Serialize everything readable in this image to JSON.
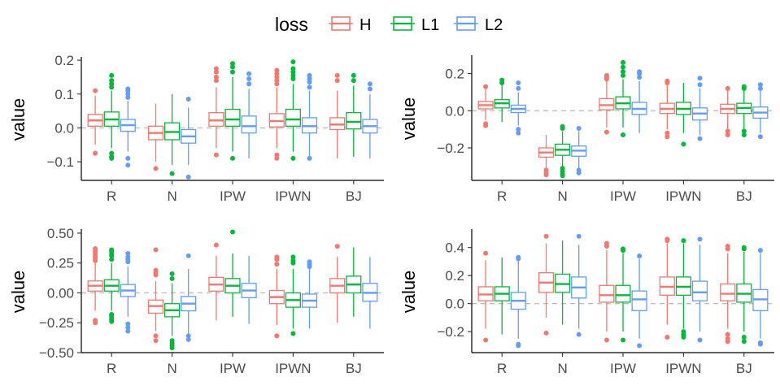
{
  "legend": {
    "title": "loss",
    "items": [
      {
        "label": "H",
        "color": "#F8766D"
      },
      {
        "label": "L1",
        "color": "#00BA38"
      },
      {
        "label": "L2",
        "color": "#619CFF"
      }
    ]
  },
  "chart_data": [
    {
      "type": "box",
      "ylabel": "value",
      "categories": [
        "R",
        "N",
        "IPW",
        "IPWN",
        "BJ"
      ],
      "ylim": [
        -0.155,
        0.205
      ],
      "yticks": [
        -0.1,
        0.0,
        0.1,
        0.2
      ],
      "ytick_labels": [
        "−0.1",
        "0.0",
        "0.1",
        "0.2"
      ],
      "reference_line": 0,
      "series": [
        {
          "name": "H",
          "boxes": [
            {
              "q1": 0.005,
              "median": 0.022,
              "q3": 0.04,
              "wlo": -0.05,
              "whi": 0.095,
              "outliers": [
                0.11,
                -0.075
              ]
            },
            {
              "q1": -0.035,
              "median": -0.015,
              "q3": 0.005,
              "wlo": -0.1,
              "whi": 0.072,
              "outliers": [
                -0.12
              ]
            },
            {
              "q1": 0.005,
              "median": 0.022,
              "q3": 0.045,
              "wlo": -0.06,
              "whi": 0.12,
              "outliers": [
                0.14,
                0.15,
                0.165,
                0.175,
                -0.08
              ]
            },
            {
              "q1": 0.003,
              "median": 0.02,
              "q3": 0.042,
              "wlo": -0.06,
              "whi": 0.12,
              "outliers": [
                0.13,
                0.14,
                0.15,
                0.16,
                0.17,
                -0.08,
                -0.09
              ]
            },
            {
              "q1": -0.005,
              "median": 0.01,
              "q3": 0.03,
              "wlo": -0.09,
              "whi": 0.11,
              "outliers": [
                0.14,
                0.155
              ]
            }
          ]
        },
        {
          "name": "L1",
          "boxes": [
            {
              "q1": 0.005,
              "median": 0.025,
              "q3": 0.047,
              "wlo": -0.06,
              "whi": 0.11,
              "outliers": [
                0.12,
                0.13,
                0.14,
                0.155,
                -0.075,
                -0.085,
                -0.09
              ]
            },
            {
              "q1": -0.035,
              "median": -0.012,
              "q3": 0.015,
              "wlo": -0.11,
              "whi": 0.1,
              "outliers": [
                -0.135
              ]
            },
            {
              "q1": 0.005,
              "median": 0.025,
              "q3": 0.055,
              "wlo": -0.07,
              "whi": 0.15,
              "outliers": [
                0.165,
                0.18,
                0.19,
                -0.09
              ]
            },
            {
              "q1": 0.005,
              "median": 0.025,
              "q3": 0.055,
              "wlo": -0.07,
              "whi": 0.13,
              "outliers": [
                0.145,
                0.155,
                0.165,
                0.175,
                0.195,
                -0.09
              ]
            },
            {
              "q1": -0.003,
              "median": 0.018,
              "q3": 0.045,
              "wlo": -0.085,
              "whi": 0.125,
              "outliers": [
                0.14,
                0.155
              ]
            }
          ]
        },
        {
          "name": "L2",
          "boxes": [
            {
              "q1": -0.01,
              "median": 0.008,
              "q3": 0.025,
              "wlo": -0.07,
              "whi": 0.08,
              "outliers": [
                0.09,
                0.1,
                0.11,
                0.115,
                -0.09,
                -0.11
              ]
            },
            {
              "q1": -0.045,
              "median": -0.025,
              "q3": -0.005,
              "wlo": -0.11,
              "whi": 0.06,
              "outliers": [
                0.085,
                -0.145
              ]
            },
            {
              "q1": -0.015,
              "median": 0.005,
              "q3": 0.035,
              "wlo": -0.09,
              "whi": 0.115,
              "outliers": [
                0.13,
                0.145,
                0.16
              ]
            },
            {
              "q1": -0.015,
              "median": 0.005,
              "q3": 0.03,
              "wlo": -0.09,
              "whi": 0.11,
              "outliers": [
                0.12,
                0.135,
                0.145,
                0.155,
                -0.09
              ]
            },
            {
              "q1": -0.015,
              "median": 0.005,
              "q3": 0.025,
              "wlo": -0.09,
              "whi": 0.1,
              "outliers": [
                0.115,
                0.13
              ]
            }
          ]
        }
      ]
    },
    {
      "type": "box",
      "ylabel": "value",
      "categories": [
        "R",
        "N",
        "IPW",
        "IPWN",
        "BJ"
      ],
      "ylim": [
        -0.375,
        0.29
      ],
      "yticks": [
        -0.2,
        0.0,
        0.2
      ],
      "ytick_labels": [
        "−0.2",
        "0.0",
        "0.2"
      ],
      "reference_line": 0,
      "series": [
        {
          "name": "H",
          "boxes": [
            {
              "q1": 0.01,
              "median": 0.03,
              "q3": 0.05,
              "wlo": -0.05,
              "whi": 0.12,
              "outliers": [
                0.13,
                -0.07,
                -0.08
              ]
            },
            {
              "q1": -0.25,
              "median": -0.225,
              "q3": -0.2,
              "wlo": -0.31,
              "whi": -0.13,
              "outliers": [
                -0.32,
                -0.335,
                -0.345
              ]
            },
            {
              "q1": 0.005,
              "median": 0.03,
              "q3": 0.065,
              "wlo": -0.09,
              "whi": 0.16,
              "outliers": [
                0.17,
                0.18,
                0.19,
                -0.115
              ]
            },
            {
              "q1": -0.015,
              "median": 0.01,
              "q3": 0.04,
              "wlo": -0.1,
              "whi": 0.14,
              "outliers": [
                0.15,
                0.16,
                -0.12,
                -0.14
              ]
            },
            {
              "q1": -0.015,
              "median": 0.01,
              "q3": 0.035,
              "wlo": -0.1,
              "whi": 0.11,
              "outliers": [
                0.12,
                -0.11,
                -0.13
              ]
            }
          ]
        },
        {
          "name": "L1",
          "boxes": [
            {
              "q1": 0.015,
              "median": 0.04,
              "q3": 0.06,
              "wlo": -0.06,
              "whi": 0.14,
              "outliers": [
                0.15,
                0.165
              ]
            },
            {
              "q1": -0.24,
              "median": -0.21,
              "q3": -0.18,
              "wlo": -0.3,
              "whi": -0.11,
              "outliers": [
                -0.085,
                -0.095,
                -0.31,
                -0.325,
                -0.34,
                -0.35
              ]
            },
            {
              "q1": 0.01,
              "median": 0.04,
              "q3": 0.075,
              "wlo": -0.09,
              "whi": 0.17,
              "outliers": [
                0.19,
                0.21,
                0.235,
                0.26,
                -0.13
              ]
            },
            {
              "q1": -0.02,
              "median": 0.01,
              "q3": 0.045,
              "wlo": -0.12,
              "whi": 0.15,
              "outliers": [
                -0.18
              ]
            },
            {
              "q1": -0.015,
              "median": 0.015,
              "q3": 0.04,
              "wlo": -0.1,
              "whi": 0.11,
              "outliers": [
                0.12,
                0.13,
                -0.11,
                -0.13
              ]
            }
          ]
        },
        {
          "name": "L2",
          "boxes": [
            {
              "q1": -0.01,
              "median": 0.01,
              "q3": 0.03,
              "wlo": -0.08,
              "whi": 0.1,
              "outliers": [
                0.12,
                0.15,
                -0.1,
                -0.12
              ]
            },
            {
              "q1": -0.245,
              "median": -0.215,
              "q3": -0.19,
              "wlo": -0.31,
              "whi": -0.11,
              "outliers": [
                -0.095,
                -0.32,
                -0.335
              ]
            },
            {
              "q1": -0.02,
              "median": 0.01,
              "q3": 0.045,
              "wlo": -0.12,
              "whi": 0.16,
              "outliers": [
                0.18,
                0.2,
                0.21
              ]
            },
            {
              "q1": -0.05,
              "median": -0.015,
              "q3": 0.015,
              "wlo": -0.13,
              "whi": 0.12,
              "outliers": [
                0.14,
                0.175,
                -0.15
              ]
            },
            {
              "q1": -0.04,
              "median": -0.01,
              "q3": 0.02,
              "wlo": -0.12,
              "whi": 0.11,
              "outliers": [
                0.12,
                0.14,
                -0.14
              ]
            }
          ]
        }
      ]
    },
    {
      "type": "box",
      "ylabel": "value",
      "categories": [
        "R",
        "N",
        "IPW",
        "IPWN",
        "BJ"
      ],
      "ylim": [
        -0.5,
        0.52
      ],
      "yticks": [
        -0.5,
        -0.25,
        0.0,
        0.25,
        0.5
      ],
      "ytick_labels": [
        "−0.50",
        "−0.25",
        "0.00",
        "0.25",
        "0.50"
      ],
      "reference_line": 0,
      "series": [
        {
          "name": "H",
          "boxes": [
            {
              "q1": 0.015,
              "median": 0.06,
              "q3": 0.1,
              "wlo": -0.15,
              "whi": 0.25,
              "outliers": [
                0.27,
                0.29,
                0.31,
                0.33,
                0.35,
                0.37,
                -0.23,
                -0.25
              ]
            },
            {
              "q1": -0.17,
              "median": -0.11,
              "q3": -0.06,
              "wlo": -0.32,
              "whi": 0.1,
              "outliers": [
                0.15,
                0.17,
                0.19,
                0.36,
                -0.36,
                -0.4
              ]
            },
            {
              "q1": 0.015,
              "median": 0.07,
              "q3": 0.13,
              "wlo": -0.23,
              "whi": 0.31,
              "outliers": [
                0.4
              ]
            },
            {
              "q1": -0.09,
              "median": -0.035,
              "q3": 0.02,
              "wlo": -0.27,
              "whi": 0.2,
              "outliers": [
                0.24,
                0.28,
                0.3,
                -0.36
              ]
            },
            {
              "q1": 0.0,
              "median": 0.06,
              "q3": 0.12,
              "wlo": -0.25,
              "whi": 0.3,
              "outliers": [
                0.39
              ]
            }
          ]
        },
        {
          "name": "L1",
          "boxes": [
            {
              "q1": 0.015,
              "median": 0.06,
              "q3": 0.11,
              "wlo": -0.15,
              "whi": 0.25,
              "outliers": [
                0.28,
                0.31,
                0.33,
                0.35,
                0.36,
                -0.18,
                -0.2,
                -0.22,
                -0.24
              ]
            },
            {
              "q1": -0.2,
              "median": -0.145,
              "q3": -0.09,
              "wlo": -0.36,
              "whi": 0.08,
              "outliers": [
                0.12,
                0.16,
                -0.4,
                -0.42,
                -0.44,
                -0.46
              ]
            },
            {
              "q1": 0.0,
              "median": 0.06,
              "q3": 0.12,
              "wlo": -0.2,
              "whi": 0.33,
              "outliers": [
                0.51
              ]
            },
            {
              "q1": -0.12,
              "median": -0.06,
              "q3": 0.0,
              "wlo": -0.3,
              "whi": 0.2,
              "outliers": [
                0.25,
                0.27,
                0.3,
                -0.34
              ]
            },
            {
              "q1": 0.0,
              "median": 0.07,
              "q3": 0.14,
              "wlo": -0.2,
              "whi": 0.38,
              "outliers": []
            }
          ]
        },
        {
          "name": "L2",
          "boxes": [
            {
              "q1": -0.03,
              "median": 0.02,
              "q3": 0.07,
              "wlo": -0.2,
              "whi": 0.22,
              "outliers": [
                0.26,
                0.28,
                0.3,
                0.33,
                -0.26,
                -0.29,
                -0.32
              ]
            },
            {
              "q1": -0.15,
              "median": -0.09,
              "q3": -0.03,
              "wlo": -0.34,
              "whi": 0.2,
              "outliers": [
                0.31,
                -0.36,
                -0.39
              ]
            },
            {
              "q1": -0.04,
              "median": 0.02,
              "q3": 0.08,
              "wlo": -0.26,
              "whi": 0.31,
              "outliers": []
            },
            {
              "q1": -0.12,
              "median": -0.065,
              "q3": -0.01,
              "wlo": -0.3,
              "whi": 0.2,
              "outliers": [
                0.22,
                0.24,
                0.26
              ]
            },
            {
              "q1": -0.07,
              "median": 0.0,
              "q3": 0.08,
              "wlo": -0.3,
              "whi": 0.3,
              "outliers": []
            }
          ]
        }
      ]
    },
    {
      "type": "box",
      "ylabel": "value",
      "categories": [
        "R",
        "N",
        "IPW",
        "IPWN",
        "BJ"
      ],
      "ylim": [
        -0.35,
        0.52
      ],
      "yticks": [
        -0.2,
        0.0,
        0.2,
        0.4
      ],
      "ytick_labels": [
        "−0.2",
        "0.0",
        "0.2",
        "0.4"
      ],
      "reference_line": 0,
      "series": [
        {
          "name": "H",
          "boxes": [
            {
              "q1": 0.02,
              "median": 0.065,
              "q3": 0.12,
              "wlo": -0.18,
              "whi": 0.31,
              "outliers": [
                0.36,
                -0.26
              ]
            },
            {
              "q1": 0.08,
              "median": 0.15,
              "q3": 0.22,
              "wlo": -0.1,
              "whi": 0.43,
              "outliers": [
                0.48,
                -0.21
              ]
            },
            {
              "q1": 0.01,
              "median": 0.06,
              "q3": 0.13,
              "wlo": -0.2,
              "whi": 0.38,
              "outliers": [
                0.41,
                0.43,
                -0.26
              ]
            },
            {
              "q1": 0.06,
              "median": 0.12,
              "q3": 0.19,
              "wlo": -0.15,
              "whi": 0.43,
              "outliers": [
                0.45,
                0.46,
                -0.24
              ]
            },
            {
              "q1": 0.02,
              "median": 0.07,
              "q3": 0.14,
              "wlo": -0.18,
              "whi": 0.36,
              "outliers": [
                0.39,
                0.41,
                -0.22,
                -0.25,
                -0.27
              ]
            }
          ]
        },
        {
          "name": "L1",
          "boxes": [
            {
              "q1": 0.02,
              "median": 0.07,
              "q3": 0.12,
              "wlo": -0.22,
              "whi": 0.33,
              "outliers": []
            },
            {
              "q1": 0.08,
              "median": 0.14,
              "q3": 0.21,
              "wlo": -0.15,
              "whi": 0.45,
              "outliers": []
            },
            {
              "q1": 0.01,
              "median": 0.06,
              "q3": 0.13,
              "wlo": -0.2,
              "whi": 0.36,
              "outliers": [
                0.38,
                0.39,
                -0.26
              ]
            },
            {
              "q1": 0.06,
              "median": 0.12,
              "q3": 0.19,
              "wlo": -0.18,
              "whi": 0.43,
              "outliers": [
                0.45,
                -0.2,
                -0.22,
                -0.24
              ]
            },
            {
              "q1": 0.01,
              "median": 0.07,
              "q3": 0.14,
              "wlo": -0.2,
              "whi": 0.37,
              "outliers": [
                0.39,
                0.4,
                -0.24,
                -0.27
              ]
            }
          ]
        },
        {
          "name": "L2",
          "boxes": [
            {
              "q1": -0.04,
              "median": 0.02,
              "q3": 0.08,
              "wlo": -0.25,
              "whi": 0.31,
              "outliers": [
                0.32,
                0.33,
                -0.29,
                -0.3
              ]
            },
            {
              "q1": 0.04,
              "median": 0.115,
              "q3": 0.19,
              "wlo": -0.18,
              "whi": 0.42,
              "outliers": [
                0.48,
                -0.22
              ]
            },
            {
              "q1": -0.05,
              "median": 0.03,
              "q3": 0.09,
              "wlo": -0.25,
              "whi": 0.32,
              "outliers": [
                0.34,
                -0.3
              ]
            },
            {
              "q1": 0.02,
              "median": 0.08,
              "q3": 0.16,
              "wlo": -0.2,
              "whi": 0.42,
              "outliers": [
                0.46,
                -0.26
              ]
            },
            {
              "q1": -0.05,
              "median": 0.03,
              "q3": 0.1,
              "wlo": -0.25,
              "whi": 0.36,
              "outliers": [
                0.38,
                -0.28,
                -0.29
              ]
            }
          ]
        }
      ]
    }
  ]
}
